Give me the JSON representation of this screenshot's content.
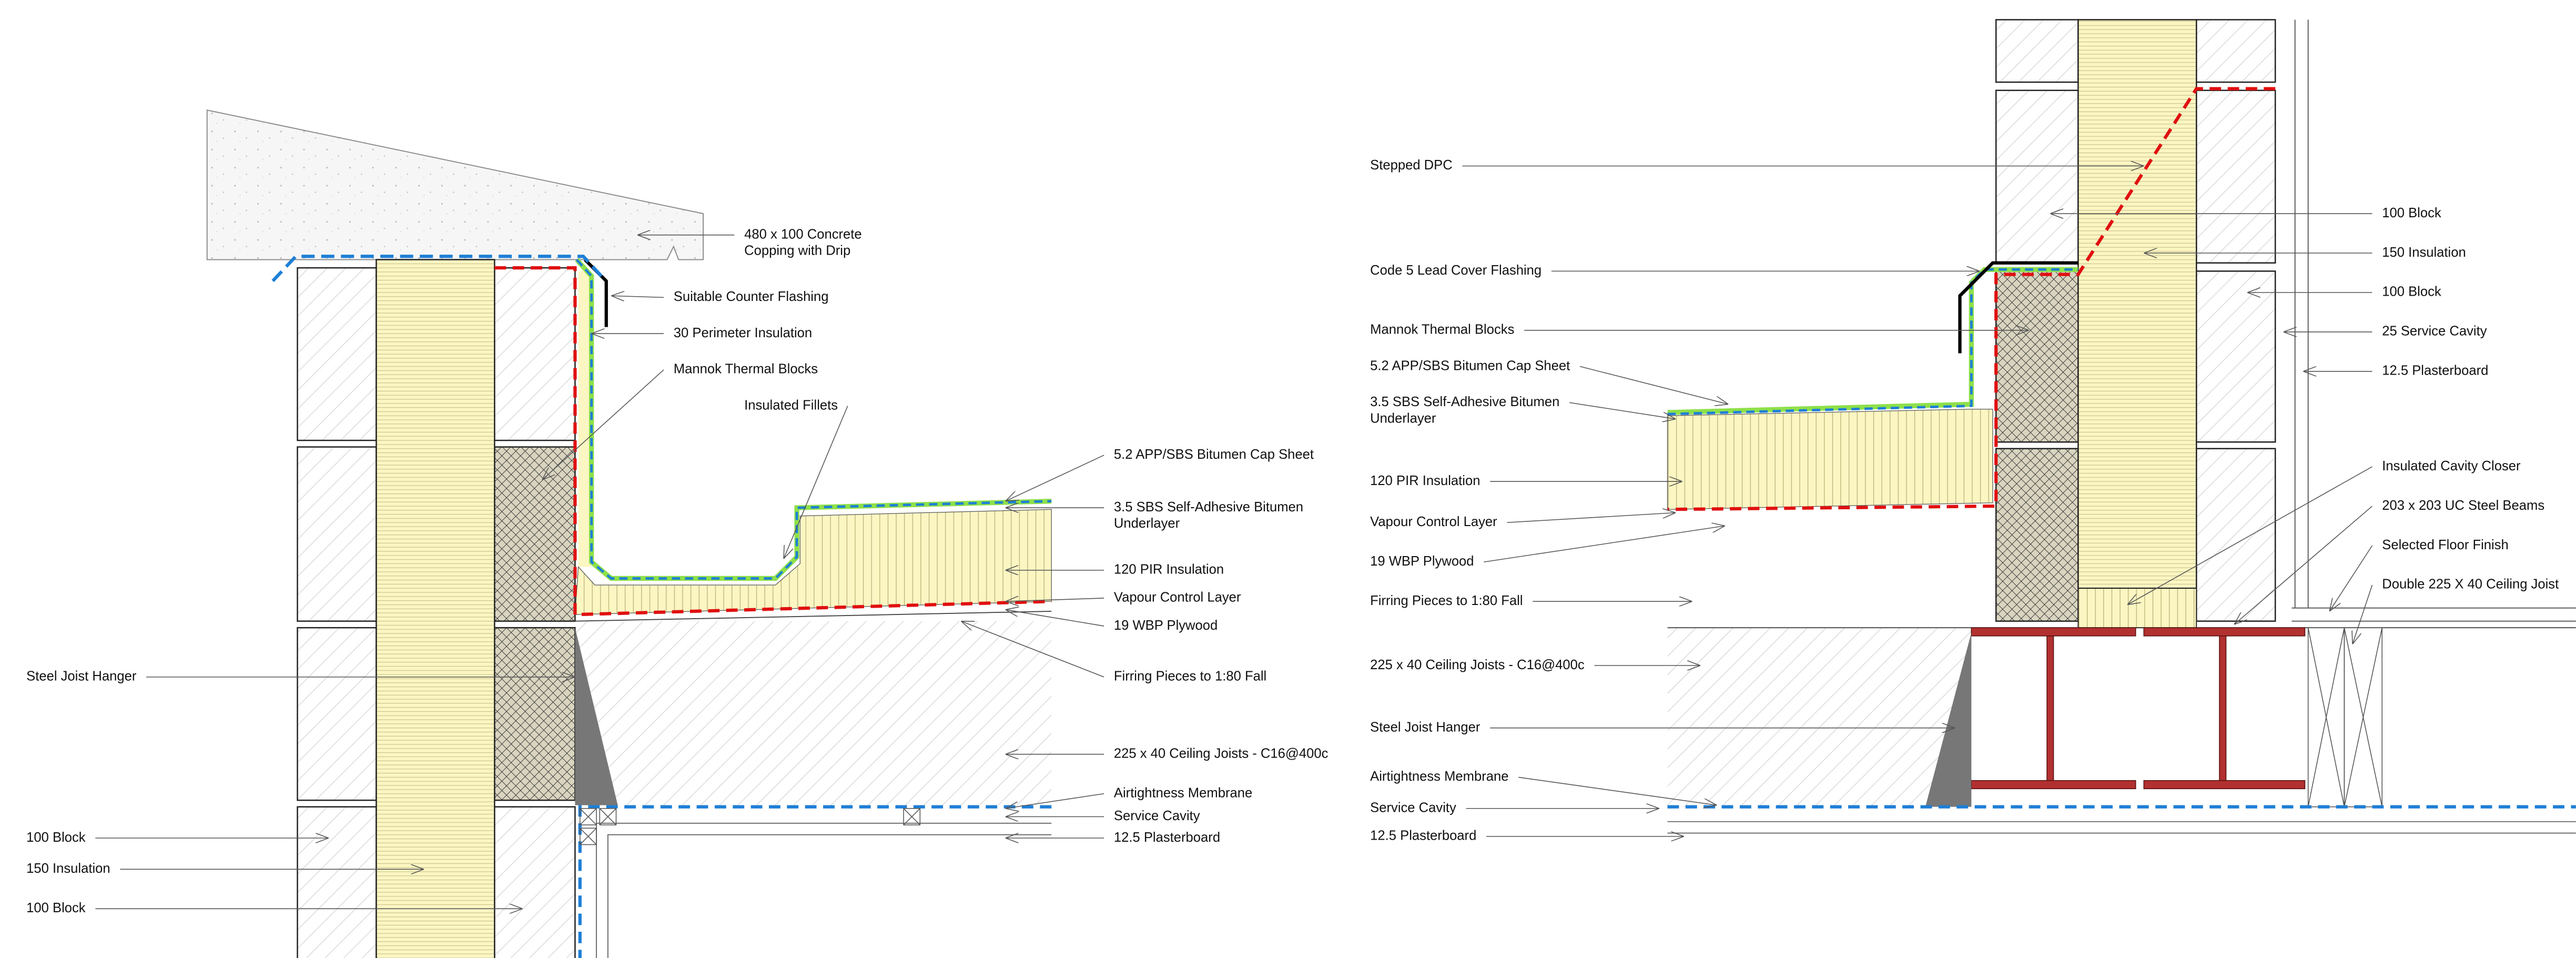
{
  "left_detail": {
    "labels": [
      {
        "lines": [
          "480 x 100 Concrete",
          "Copping with Drip"
        ]
      },
      {
        "lines": [
          "Suitable Counter Flashing"
        ]
      },
      {
        "lines": [
          "30 Perimeter Insulation"
        ]
      },
      {
        "lines": [
          "Mannok Thermal Blocks"
        ]
      },
      {
        "lines": [
          "Insulated Fillets"
        ]
      },
      {
        "lines": [
          "5.2 APP/SBS Bitumen Cap Sheet"
        ]
      },
      {
        "lines": [
          "3.5 SBS Self-Adhesive Bitumen",
          "Underlayer"
        ]
      },
      {
        "lines": [
          "120 PIR Insulation"
        ]
      },
      {
        "lines": [
          "Vapour Control Layer"
        ]
      },
      {
        "lines": [
          "19 WBP Plywood"
        ]
      },
      {
        "lines": [
          "Firring Pieces to 1:80 Fall"
        ]
      },
      {
        "lines": [
          "225 x 40 Ceiling Joists - C16@400c"
        ]
      },
      {
        "lines": [
          "Airtightness Membrane"
        ]
      },
      {
        "lines": [
          "Service Cavity"
        ]
      },
      {
        "lines": [
          "12.5 Plasterboard"
        ]
      },
      {
        "lines": [
          "Steel Joist Hanger"
        ]
      },
      {
        "lines": [
          "100 Block"
        ]
      },
      {
        "lines": [
          "150 Insulation"
        ]
      },
      {
        "lines": [
          "100 Block"
        ]
      }
    ]
  },
  "right_detail": {
    "labels": [
      {
        "lines": [
          "Stepped DPC"
        ]
      },
      {
        "lines": [
          "Code 5 Lead Cover Flashing"
        ]
      },
      {
        "lines": [
          "Mannok Thermal Blocks"
        ]
      },
      {
        "lines": [
          "5.2 APP/SBS Bitumen Cap Sheet"
        ]
      },
      {
        "lines": [
          "3.5 SBS Self-Adhesive Bitumen",
          "Underlayer"
        ]
      },
      {
        "lines": [
          "120 PIR Insulation"
        ]
      },
      {
        "lines": [
          "Vapour Control Layer"
        ]
      },
      {
        "lines": [
          "19 WBP Plywood"
        ]
      },
      {
        "lines": [
          "Firring Pieces to 1:80 Fall"
        ]
      },
      {
        "lines": [
          "225 x 40 Ceiling Joists - C16@400c"
        ]
      },
      {
        "lines": [
          "Steel Joist Hanger"
        ]
      },
      {
        "lines": [
          "Airtightness Membrane"
        ]
      },
      {
        "lines": [
          "Service Cavity"
        ]
      },
      {
        "lines": [
          "12.5 Plasterboard"
        ]
      },
      {
        "lines": [
          "100 Block"
        ]
      },
      {
        "lines": [
          "150 Insulation"
        ]
      },
      {
        "lines": [
          "100 Block"
        ]
      },
      {
        "lines": [
          "25 Service Cavity"
        ]
      },
      {
        "lines": [
          "12.5 Plasterboard"
        ]
      },
      {
        "lines": [
          "Insulated Cavity Closer"
        ]
      },
      {
        "lines": [
          "203 x 203 UC Steel Beams"
        ]
      },
      {
        "lines": [
          "Selected Floor Finish"
        ]
      },
      {
        "lines": [
          "Double 225 X 40 Ceiling Joist"
        ]
      }
    ]
  }
}
